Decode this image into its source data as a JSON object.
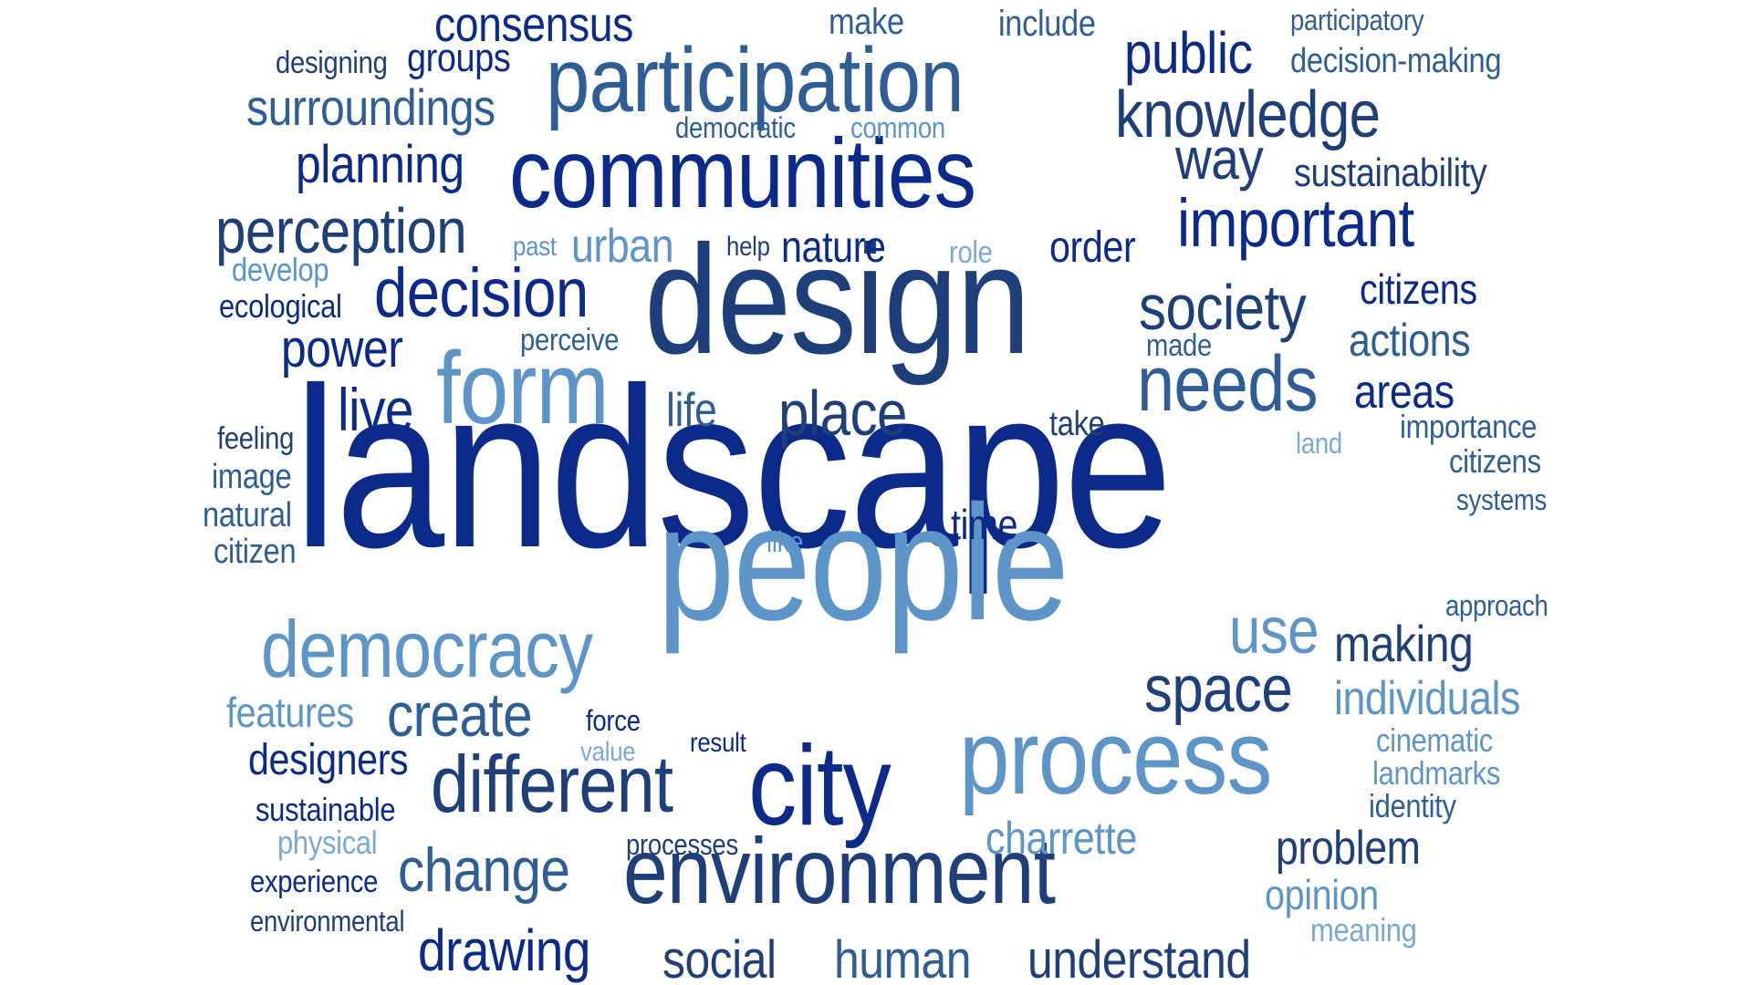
{
  "palette": {
    "c0": "#0b2a8a",
    "c1": "#1f3f7a",
    "c2": "#2f5e96",
    "c3": "#5d95c8",
    "c4": "#7aa9d6",
    "background": "#ffffff"
  },
  "words": [
    {
      "id": "landscape",
      "text": "landscape"
    },
    {
      "id": "people",
      "text": "people"
    },
    {
      "id": "design",
      "text": "design"
    },
    {
      "id": "communities",
      "text": "communities"
    },
    {
      "id": "participation",
      "text": "participation"
    },
    {
      "id": "environment",
      "text": "environment"
    },
    {
      "id": "process",
      "text": "process"
    },
    {
      "id": "city",
      "text": "city"
    },
    {
      "id": "form",
      "text": "form"
    },
    {
      "id": "democracy",
      "text": "democracy"
    },
    {
      "id": "different",
      "text": "different"
    },
    {
      "id": "decision",
      "text": "decision"
    },
    {
      "id": "knowledge",
      "text": "knowledge"
    },
    {
      "id": "needs",
      "text": "needs"
    },
    {
      "id": "society",
      "text": "society"
    },
    {
      "id": "important",
      "text": "important"
    },
    {
      "id": "perception",
      "text": "perception"
    },
    {
      "id": "public",
      "text": "public"
    },
    {
      "id": "space",
      "text": "space"
    },
    {
      "id": "place",
      "text": "place"
    },
    {
      "id": "create",
      "text": "create"
    },
    {
      "id": "change",
      "text": "change"
    },
    {
      "id": "consensus",
      "text": "consensus"
    },
    {
      "id": "surroundings",
      "text": "surroundings"
    },
    {
      "id": "planning",
      "text": "planning"
    },
    {
      "id": "way",
      "text": "way"
    },
    {
      "id": "social",
      "text": "social"
    },
    {
      "id": "human",
      "text": "human"
    },
    {
      "id": "understand",
      "text": "understand"
    },
    {
      "id": "drawing",
      "text": "drawing"
    },
    {
      "id": "use",
      "text": "use"
    },
    {
      "id": "power",
      "text": "power"
    },
    {
      "id": "live",
      "text": "live"
    },
    {
      "id": "making",
      "text": "making"
    },
    {
      "id": "urban",
      "text": "urban"
    },
    {
      "id": "nature",
      "text": "nature"
    },
    {
      "id": "order",
      "text": "order"
    },
    {
      "id": "actions",
      "text": "actions"
    },
    {
      "id": "individuals",
      "text": "individuals"
    },
    {
      "id": "problem",
      "text": "problem"
    },
    {
      "id": "charrette",
      "text": "charrette"
    },
    {
      "id": "areas",
      "text": "areas"
    },
    {
      "id": "citizens",
      "text": "citizens"
    },
    {
      "id": "designers",
      "text": "designers"
    },
    {
      "id": "groups",
      "text": "groups"
    },
    {
      "id": "sustainability",
      "text": "sustainability"
    },
    {
      "id": "opinion",
      "text": "opinion"
    },
    {
      "id": "features",
      "text": "features"
    },
    {
      "id": "time",
      "text": "time"
    },
    {
      "id": "life",
      "text": "life"
    },
    {
      "id": "make",
      "text": "make"
    },
    {
      "id": "include",
      "text": "include"
    },
    {
      "id": "decision-making",
      "text": "decision-making"
    },
    {
      "id": "participatory",
      "text": "participatory"
    },
    {
      "id": "designing",
      "text": "designing"
    },
    {
      "id": "democratic",
      "text": "democratic"
    },
    {
      "id": "common",
      "text": "common"
    },
    {
      "id": "develop",
      "text": "develop"
    },
    {
      "id": "ecological",
      "text": "ecological"
    },
    {
      "id": "past",
      "text": "past"
    },
    {
      "id": "help",
      "text": "help"
    },
    {
      "id": "role",
      "text": "role"
    },
    {
      "id": "perceive",
      "text": "perceive"
    },
    {
      "id": "made",
      "text": "made"
    },
    {
      "id": "take",
      "text": "take"
    },
    {
      "id": "land",
      "text": "land"
    },
    {
      "id": "importance",
      "text": "importance"
    },
    {
      "id": "citizens2",
      "text": "citizens"
    },
    {
      "id": "systems",
      "text": "systems"
    },
    {
      "id": "feeling",
      "text": "feeling"
    },
    {
      "id": "image",
      "text": "image"
    },
    {
      "id": "natural",
      "text": "natural"
    },
    {
      "id": "citizen",
      "text": "citizen"
    },
    {
      "id": "like",
      "text": "like"
    },
    {
      "id": "approach",
      "text": "approach"
    },
    {
      "id": "force",
      "text": "force"
    },
    {
      "id": "value",
      "text": "value"
    },
    {
      "id": "result",
      "text": "result"
    },
    {
      "id": "cinematic",
      "text": "cinematic"
    },
    {
      "id": "landmarks",
      "text": "landmarks"
    },
    {
      "id": "identity",
      "text": "identity"
    },
    {
      "id": "sustainable",
      "text": "sustainable"
    },
    {
      "id": "physical",
      "text": "physical"
    },
    {
      "id": "processes",
      "text": "processes"
    },
    {
      "id": "experience",
      "text": "experience"
    },
    {
      "id": "environmental",
      "text": "environmental"
    },
    {
      "id": "meaning",
      "text": "meaning"
    }
  ]
}
